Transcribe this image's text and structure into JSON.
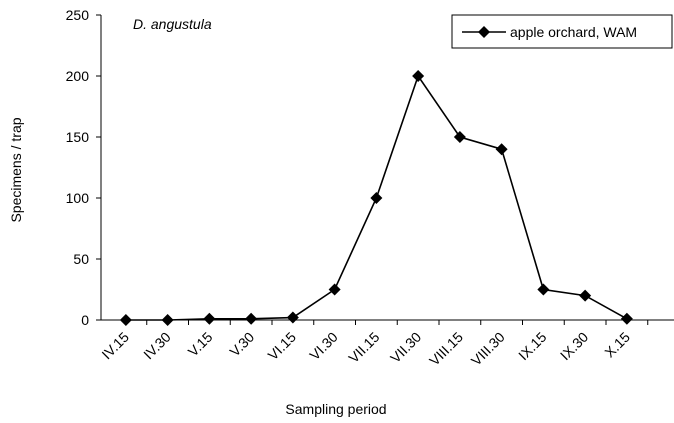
{
  "chart_data": {
    "type": "line",
    "title": "D. angustula",
    "x_label": "Sampling period",
    "y_label": "Specimens / trap",
    "categories": [
      "IV.15",
      "IV.30",
      "V.15",
      "V.30",
      "VI.15",
      "VI.30",
      "VII.15",
      "VII.30",
      "VIII.15",
      "VIII.30",
      "IX.15",
      "IX.30",
      "X.15"
    ],
    "series": [
      {
        "name": "apple orchard, WAM",
        "color": "#000000",
        "values": [
          0,
          0,
          1,
          1,
          2,
          25,
          100,
          200,
          150,
          140,
          25,
          20,
          1
        ]
      }
    ],
    "ylim": [
      0,
      250
    ],
    "yticks": [
      0,
      50,
      100,
      150,
      200,
      250
    ],
    "grid": false,
    "legend": "top-right"
  }
}
